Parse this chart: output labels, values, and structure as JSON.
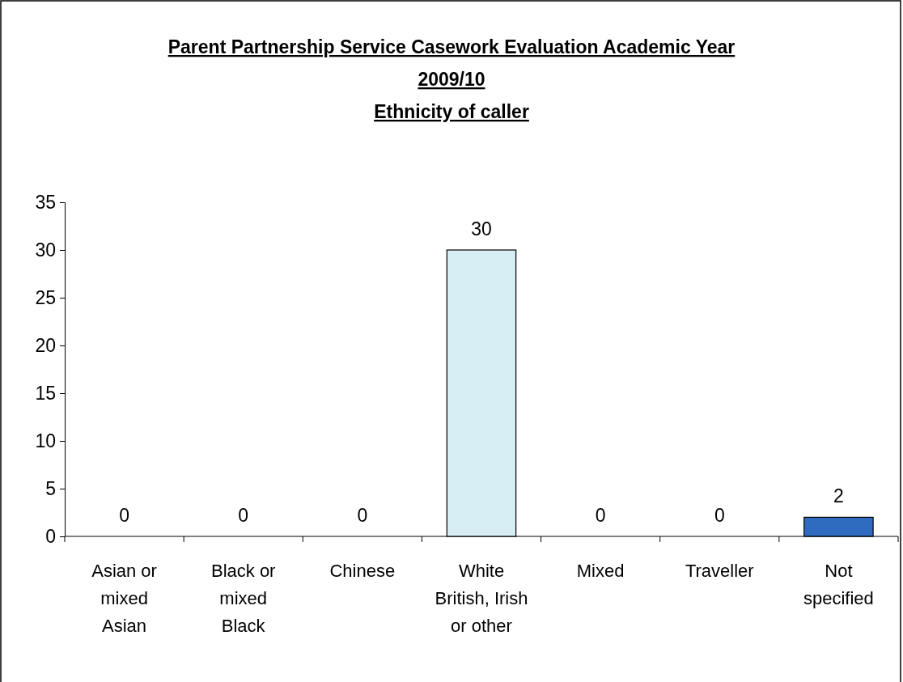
{
  "chart_data": {
    "type": "bar",
    "title": "Parent Partnership Service Casework Evaluation Academic Year 2009/10",
    "subtitle": "Ethnicity of caller",
    "categories": [
      "Asian or mixed Asian",
      "Black or mixed Black",
      "Chinese",
      "White British, Irish or other",
      "Mixed",
      "Traveller",
      "Not specified"
    ],
    "values": [
      0,
      0,
      0,
      30,
      0,
      0,
      2
    ],
    "colors": [
      "#d6edf3",
      "#d6edf3",
      "#d6edf3",
      "#d6edf3",
      "#d6edf3",
      "#d6edf3",
      "#2f6cc0"
    ],
    "ylim": [
      0,
      35
    ],
    "yticks": [
      0,
      5,
      10,
      15,
      20,
      25,
      30,
      35
    ],
    "grid": false,
    "data_labels": true
  }
}
